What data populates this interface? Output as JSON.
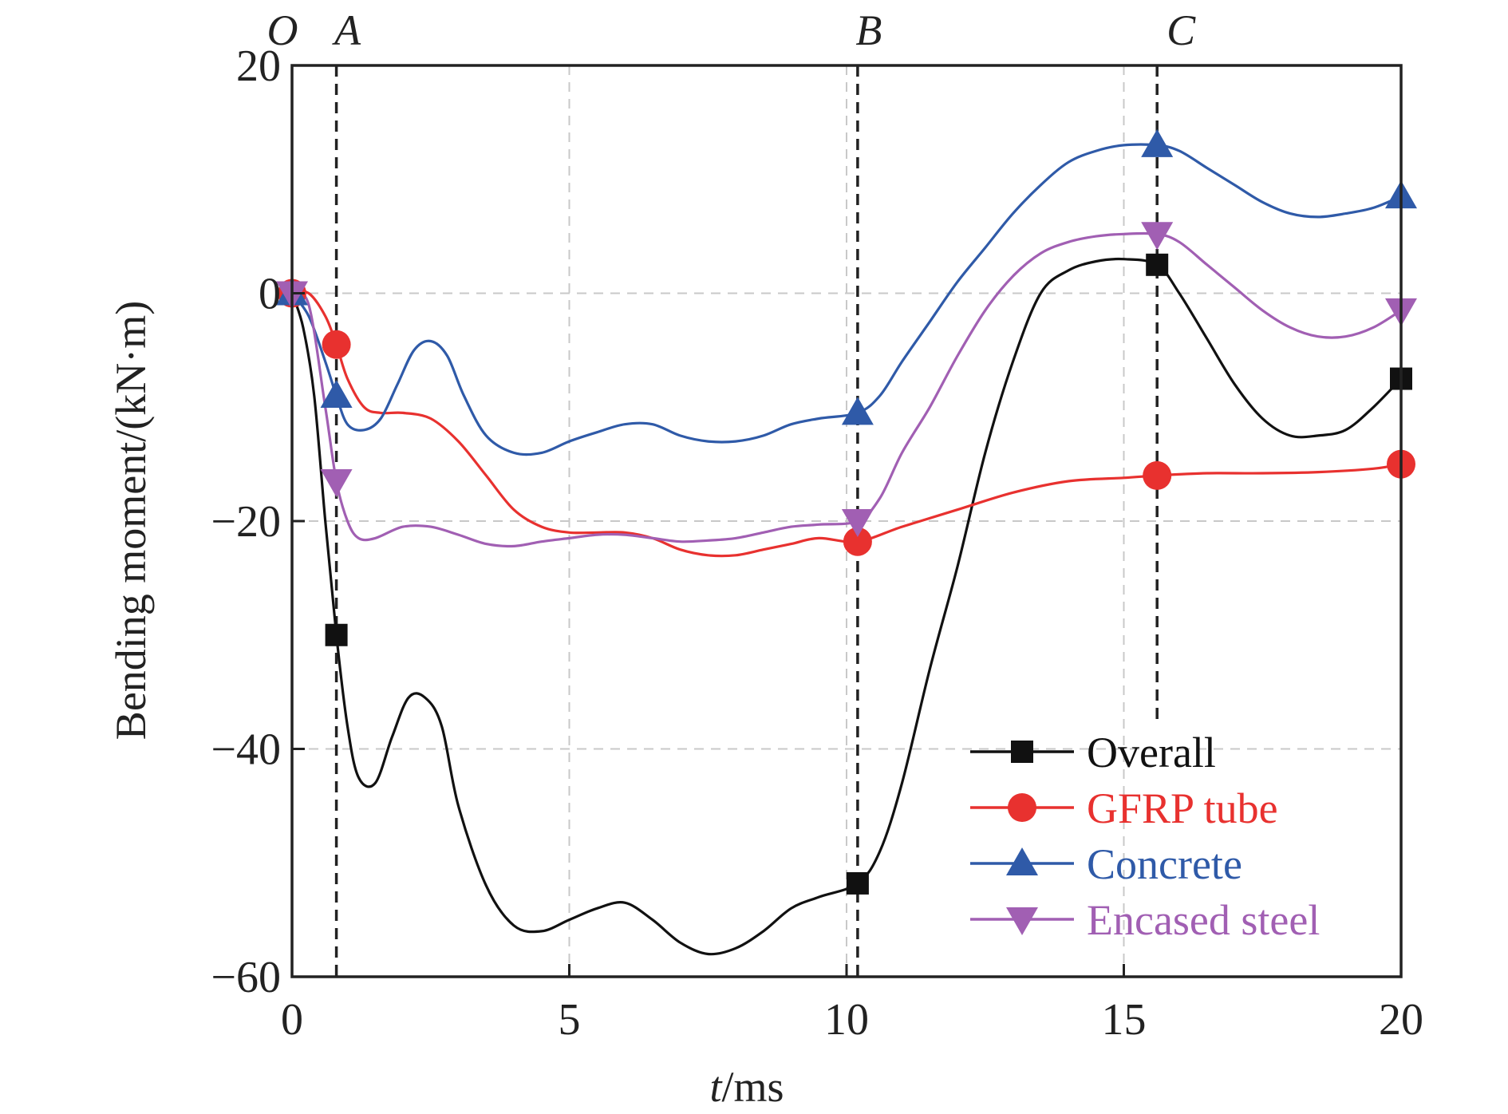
{
  "chart_data": {
    "type": "line",
    "xlabel_italic": "t",
    "xlabel_unit": "/ms",
    "ylabel": "Bending moment/(kN·m)",
    "xlim": [
      0,
      20
    ],
    "ylim": [
      -60,
      20
    ],
    "xticks": [
      0,
      5,
      10,
      15,
      20
    ],
    "xtick_labels": [
      "0",
      "5",
      "10",
      "15",
      "20"
    ],
    "yticks": [
      20,
      0,
      -20,
      -40,
      -60
    ],
    "ytick_labels": [
      "20",
      "0",
      "−20",
      "−40",
      "−60"
    ],
    "grid": true,
    "legend_position": "bottom-right",
    "event_lines": [
      {
        "label": "O",
        "x": 0
      },
      {
        "label": "A",
        "x": 0.8
      },
      {
        "label": "B",
        "x": 10.2
      },
      {
        "label": "C",
        "x": 15.6
      }
    ],
    "series": [
      {
        "name": "Overall",
        "color": "#111111",
        "marker": "square",
        "x": [
          0,
          0.2,
          0.4,
          0.6,
          0.8,
          1.0,
          1.2,
          1.5,
          1.8,
          2.1,
          2.4,
          2.7,
          3.0,
          3.5,
          4.0,
          4.5,
          5.0,
          5.5,
          6.0,
          6.5,
          7.0,
          7.5,
          8.0,
          8.5,
          9.0,
          9.5,
          10.2,
          10.6,
          11.0,
          11.5,
          12.0,
          12.5,
          13.0,
          13.5,
          14.0,
          14.5,
          15.0,
          15.6,
          16.0,
          16.5,
          17.0,
          17.5,
          18.0,
          18.5,
          19.0,
          19.5,
          20.0
        ],
        "y": [
          0,
          -3,
          -9,
          -20,
          -30,
          -38,
          -42.5,
          -43,
          -39,
          -35.5,
          -35.5,
          -38,
          -45,
          -52,
          -55.5,
          -56,
          -55,
          -54,
          -53.5,
          -55,
          -57,
          -58,
          -57.5,
          -56,
          -54,
          -53,
          -51.8,
          -49,
          -43,
          -33,
          -24,
          -14,
          -6,
          0,
          2,
          2.8,
          3,
          2.5,
          0,
          -4,
          -8,
          -11,
          -12.5,
          -12.5,
          -12,
          -10,
          -7.5
        ],
        "markers_x": [
          0,
          0.8,
          10.2,
          15.6,
          20
        ],
        "markers_y": [
          0,
          -30,
          -51.8,
          2.5,
          -7.5
        ]
      },
      {
        "name": "GFRP tube",
        "color": "#e8312f",
        "marker": "circle",
        "x": [
          0,
          0.3,
          0.6,
          0.8,
          1.0,
          1.3,
          1.6,
          2.0,
          2.5,
          3.0,
          3.5,
          4.0,
          4.5,
          5.0,
          5.5,
          6.0,
          6.5,
          7.0,
          7.5,
          8.0,
          8.5,
          9.0,
          9.5,
          10.2,
          11.0,
          12.0,
          13.0,
          14.0,
          15.0,
          15.6,
          16.5,
          17.5,
          18.5,
          19.5,
          20.0
        ],
        "y": [
          0,
          0,
          -2,
          -4.5,
          -7.5,
          -10,
          -10.5,
          -10.5,
          -11,
          -13,
          -16,
          -19,
          -20.5,
          -21,
          -21,
          -21,
          -21.5,
          -22.5,
          -23,
          -23,
          -22.5,
          -22,
          -21.5,
          -21.8,
          -20.5,
          -19,
          -17.5,
          -16.5,
          -16.2,
          -16,
          -15.8,
          -15.8,
          -15.7,
          -15.4,
          -15
        ],
        "markers_x": [
          0,
          0.8,
          10.2,
          15.6,
          20
        ],
        "markers_y": [
          0,
          -4.5,
          -21.8,
          -16,
          -15
        ]
      },
      {
        "name": "Concrete",
        "color": "#2f5aa8",
        "marker": "triangle-up",
        "x": [
          0,
          0.3,
          0.6,
          0.8,
          1.0,
          1.3,
          1.6,
          1.9,
          2.2,
          2.5,
          2.8,
          3.1,
          3.5,
          4.0,
          4.5,
          5.0,
          5.5,
          6.0,
          6.5,
          7.0,
          7.5,
          8.0,
          8.5,
          9.0,
          9.5,
          10.2,
          10.6,
          11.0,
          11.5,
          12.0,
          12.5,
          13.0,
          13.5,
          14.0,
          14.5,
          15.0,
          15.6,
          16.0,
          16.5,
          17.0,
          17.5,
          18.0,
          18.5,
          19.0,
          19.5,
          20.0
        ],
        "y": [
          0,
          -2,
          -6,
          -9,
          -11.5,
          -12,
          -11,
          -8,
          -5,
          -4.2,
          -5.5,
          -9,
          -12.5,
          -14,
          -14,
          -13,
          -12.2,
          -11.5,
          -11.5,
          -12.5,
          -13,
          -13,
          -12.5,
          -11.5,
          -11,
          -10.5,
          -9,
          -6,
          -2.5,
          1,
          4,
          7,
          9.5,
          11.5,
          12.5,
          13,
          13,
          12.5,
          11,
          9.5,
          8,
          7,
          6.7,
          7,
          7.5,
          8.5
        ],
        "markers_x": [
          0,
          0.8,
          10.2,
          15.6,
          20
        ],
        "markers_y": [
          0,
          -9,
          -10.5,
          13,
          8.5
        ]
      },
      {
        "name": "Encased steel",
        "color": "#a15fb3",
        "marker": "triangle-down",
        "x": [
          0,
          0.3,
          0.6,
          0.8,
          1.0,
          1.2,
          1.5,
          2.0,
          2.5,
          3.0,
          3.5,
          4.0,
          4.5,
          5.0,
          5.5,
          6.0,
          6.5,
          7.0,
          7.5,
          8.0,
          8.5,
          9.0,
          9.5,
          10.2,
          10.6,
          11.0,
          11.5,
          12.0,
          12.5,
          13.0,
          13.5,
          14.0,
          14.5,
          15.0,
          15.6,
          16.0,
          16.5,
          17.0,
          17.5,
          18.0,
          18.5,
          19.0,
          19.5,
          20.0
        ],
        "y": [
          0,
          -1,
          -10,
          -16.5,
          -20,
          -21.5,
          -21.5,
          -20.5,
          -20.5,
          -21.2,
          -22,
          -22.2,
          -21.8,
          -21.5,
          -21.2,
          -21.2,
          -21.5,
          -21.8,
          -21.7,
          -21.5,
          -21,
          -20.5,
          -20.3,
          -20,
          -18,
          -14,
          -10,
          -5.5,
          -1.5,
          1.5,
          3.5,
          4.5,
          5,
          5.2,
          5.2,
          4.5,
          2.5,
          0.5,
          -1.5,
          -3,
          -3.8,
          -3.8,
          -3,
          -1.5
        ],
        "markers_x": [
          0,
          0.8,
          10.2,
          15.6,
          20
        ],
        "markers_y": [
          0,
          -16.5,
          -20,
          5.2,
          -1.5
        ]
      }
    ]
  }
}
